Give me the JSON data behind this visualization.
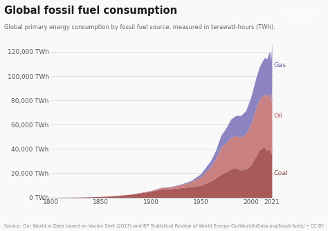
{
  "title": "Global fossil fuel consumption",
  "subtitle": "Global primary energy consumption by fossil fuel source, measured in terawatt-hours (TWh).",
  "source_text": "Source: Our World in Data based on Vaclav Smil (2017) and BP Statistical Review of World Energy",
  "source_url": "OurWorldInData.org/fossil-fuels/ • CC BY",
  "bg_color": "#f9f9f9",
  "plot_bg_color": "#f9f9f9",
  "grid_color": "#d9d9d9",
  "coal_color": "#a85a5a",
  "oil_color": "#c98080",
  "gas_color": "#8b84c0",
  "years": [
    1800,
    1810,
    1820,
    1830,
    1840,
    1850,
    1860,
    1870,
    1880,
    1890,
    1900,
    1910,
    1920,
    1930,
    1940,
    1950,
    1960,
    1965,
    1970,
    1975,
    1980,
    1985,
    1990,
    1995,
    2000,
    2005,
    2008,
    2010,
    2012,
    2014,
    2016,
    2018,
    2019,
    2020,
    2021
  ],
  "coal": [
    100,
    150,
    200,
    300,
    500,
    800,
    1200,
    1800,
    2600,
    3800,
    5000,
    6800,
    7200,
    8000,
    8800,
    10000,
    13500,
    16000,
    19000,
    21000,
    23500,
    24500,
    22500,
    23500,
    26500,
    34000,
    38500,
    40000,
    41000,
    41500,
    38500,
    40000,
    39500,
    35000,
    44000
  ],
  "oil": [
    0,
    0,
    0,
    0,
    0,
    0,
    50,
    100,
    200,
    300,
    600,
    1200,
    1500,
    2500,
    4000,
    7000,
    12000,
    16000,
    22000,
    24000,
    26000,
    26500,
    27000,
    29000,
    34000,
    39000,
    41000,
    42000,
    43000,
    44000,
    44500,
    45000,
    45500,
    43000,
    46000
  ],
  "gas": [
    0,
    0,
    0,
    0,
    0,
    0,
    0,
    0,
    0,
    50,
    100,
    200,
    300,
    500,
    1000,
    2500,
    5000,
    7000,
    10000,
    12000,
    15000,
    16500,
    18000,
    19000,
    22000,
    25000,
    27000,
    28000,
    29000,
    30000,
    31000,
    34000,
    35000,
    34000,
    38000
  ],
  "ylim": [
    0,
    137000
  ],
  "yticks": [
    0,
    20000,
    40000,
    60000,
    80000,
    100000,
    120000
  ],
  "ytick_labels": [
    "0 TWh",
    "20,000 TWh",
    "40,000 TWh",
    "60,000 TWh",
    "80,000 TWh",
    "100,000 TWh",
    "120,000 TWh"
  ],
  "xticks": [
    1800,
    1850,
    1900,
    1950,
    2000,
    2021
  ],
  "xtick_labels": [
    "1800",
    "1850",
    "1900",
    "1950",
    "2000",
    "2021"
  ],
  "label_gas": "Gas",
  "label_oil": "Oil",
  "label_coal": "Coal",
  "logo_color": "#c0392b",
  "logo_text": "Our World\nin Data"
}
